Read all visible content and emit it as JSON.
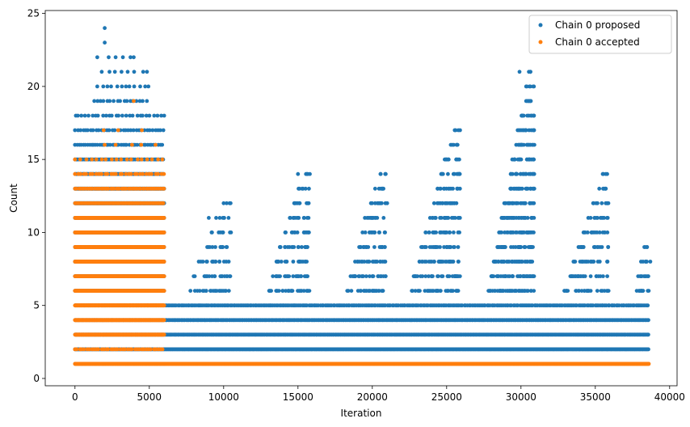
{
  "chart_data": {
    "type": "scatter",
    "title": "",
    "xlabel": "Iteration",
    "ylabel": "Count",
    "xlim": [
      -2000,
      40500
    ],
    "ylim": [
      -0.5,
      25.2
    ],
    "xticks": [
      0,
      5000,
      10000,
      15000,
      20000,
      25000,
      30000,
      35000,
      40000
    ],
    "xtick_labels": [
      "0",
      "5000",
      "10000",
      "15000",
      "20000",
      "25000",
      "30000",
      "35000",
      "40000"
    ],
    "yticks": [
      0,
      5,
      10,
      15,
      20,
      25
    ],
    "ytick_labels": [
      "0",
      "5",
      "10",
      "15",
      "20",
      "25"
    ],
    "grid": false,
    "legend_position": "top-right",
    "series": [
      {
        "name": "Chain 0 proposed",
        "color": "#1f77b4",
        "segments": [
          {
            "y": 1,
            "x_start": 0,
            "x_end": 6000,
            "step": 130
          },
          {
            "y": 2,
            "x_start": 0,
            "x_end": 38600,
            "step": 45
          },
          {
            "y": 3,
            "x_start": 0,
            "x_end": 38600,
            "step": 60
          },
          {
            "y": 4,
            "x_start": 0,
            "x_end": 38600,
            "step": 85
          },
          {
            "y": 5,
            "x_start": 0,
            "x_end": 38600,
            "step": 110
          },
          {
            "y": 6,
            "x_start": 0,
            "x_end": 6000,
            "step": 25
          },
          {
            "y": 7,
            "x_start": 0,
            "x_end": 6000,
            "step": 25
          },
          {
            "y": 8,
            "x_start": 0,
            "x_end": 6000,
            "step": 25
          },
          {
            "y": 9,
            "x_start": 0,
            "x_end": 6000,
            "step": 25
          },
          {
            "y": 10,
            "x_start": 0,
            "x_end": 6000,
            "step": 25
          },
          {
            "y": 11,
            "x_start": 0,
            "x_end": 6000,
            "step": 25
          },
          {
            "y": 12,
            "x_start": 0,
            "x_end": 6000,
            "step": 25
          },
          {
            "y": 13,
            "x_start": 0,
            "x_end": 6000,
            "step": 40
          },
          {
            "y": 14,
            "x_start": 0,
            "x_end": 6000,
            "step": 70
          },
          {
            "y": 15,
            "x_start": 0,
            "x_end": 6000,
            "step": 110
          },
          {
            "y": 16,
            "x_start": 0,
            "x_end": 6000,
            "step": 140
          },
          {
            "y": 17,
            "x_start": 0,
            "x_end": 6000,
            "step": 180
          },
          {
            "y": 18,
            "x_start": 0,
            "x_end": 6000,
            "step": 230
          },
          {
            "y": 19,
            "x_start": 1300,
            "x_end": 5000,
            "step": 220
          },
          {
            "y": 20,
            "x_start": 1500,
            "x_end": 5200,
            "step": 320
          },
          {
            "y": 21,
            "x_start": 1800,
            "x_end": 5000,
            "step": 450
          },
          {
            "y": 22,
            "x_start": 1500,
            "x_end": 4000,
            "step": 600
          }
        ],
        "cycles": [
          {
            "start": 6000,
            "peak": 10500,
            "top": 12
          },
          {
            "start": 11500,
            "peak": 15800,
            "top": 14
          },
          {
            "start": 17000,
            "peak": 20900,
            "top": 14
          },
          {
            "start": 21000,
            "peak": 25900,
            "top": 17
          },
          {
            "start": 26500,
            "peak": 30900,
            "top": 21
          },
          {
            "start": 31500,
            "peak": 35900,
            "top": 14
          },
          {
            "start": 37000,
            "peak": 38600,
            "top": 9
          }
        ],
        "points": [
          {
            "x": 2000,
            "y": 24
          },
          {
            "x": 2000,
            "y": 23
          },
          {
            "x": 3950,
            "y": 22
          },
          {
            "x": 29900,
            "y": 21
          },
          {
            "x": 30900,
            "y": 16
          },
          {
            "x": 25900,
            "y": 17
          },
          {
            "x": 25850,
            "y": 15
          },
          {
            "x": 25850,
            "y": 14
          },
          {
            "x": 35700,
            "y": 14
          },
          {
            "x": 15000,
            "y": 14
          },
          {
            "x": 15800,
            "y": 14
          },
          {
            "x": 20900,
            "y": 14
          },
          {
            "x": 20700,
            "y": 13
          },
          {
            "x": 21000,
            "y": 12
          },
          {
            "x": 30300,
            "y": 12
          },
          {
            "x": 29900,
            "y": 13
          },
          {
            "x": 10000,
            "y": 12
          },
          {
            "x": 19500,
            "y": 11
          },
          {
            "x": 9000,
            "y": 11
          },
          {
            "x": 38300,
            "y": 9
          },
          {
            "x": 38700,
            "y": 8
          },
          {
            "x": 23600,
            "y": 10
          },
          {
            "x": 25000,
            "y": 10
          }
        ]
      },
      {
        "name": "Chain 0 accepted",
        "color": "#ff7f0e",
        "segments": [
          {
            "y": 1,
            "x_start": 0,
            "x_end": 38600,
            "step": 20
          },
          {
            "y": 2,
            "x_start": 0,
            "x_end": 6000,
            "step": 160
          },
          {
            "y": 3,
            "x_start": 0,
            "x_end": 6000,
            "step": 25
          },
          {
            "y": 4,
            "x_start": 0,
            "x_end": 6000,
            "step": 25
          },
          {
            "y": 5,
            "x_start": 0,
            "x_end": 6000,
            "step": 25
          },
          {
            "y": 6,
            "x_start": 0,
            "x_end": 6000,
            "step": 25
          },
          {
            "y": 7,
            "x_start": 0,
            "x_end": 6000,
            "step": 25
          },
          {
            "y": 8,
            "x_start": 0,
            "x_end": 6000,
            "step": 25
          },
          {
            "y": 9,
            "x_start": 0,
            "x_end": 6000,
            "step": 25
          },
          {
            "y": 10,
            "x_start": 0,
            "x_end": 6000,
            "step": 25
          },
          {
            "y": 11,
            "x_start": 0,
            "x_end": 6000,
            "step": 25
          },
          {
            "y": 12,
            "x_start": 0,
            "x_end": 6000,
            "step": 70
          },
          {
            "y": 13,
            "x_start": 0,
            "x_end": 6000,
            "step": 120
          },
          {
            "y": 14,
            "x_start": 0,
            "x_end": 6000,
            "step": 200
          },
          {
            "y": 15,
            "x_start": 0,
            "x_end": 6000,
            "step": 350
          },
          {
            "y": 16,
            "x_start": 2000,
            "x_end": 6000,
            "step": 900
          },
          {
            "y": 17,
            "x_start": 1500,
            "x_end": 4500,
            "step": 1500
          }
        ],
        "points": [
          {
            "x": 3950,
            "y": 19
          }
        ]
      }
    ]
  }
}
